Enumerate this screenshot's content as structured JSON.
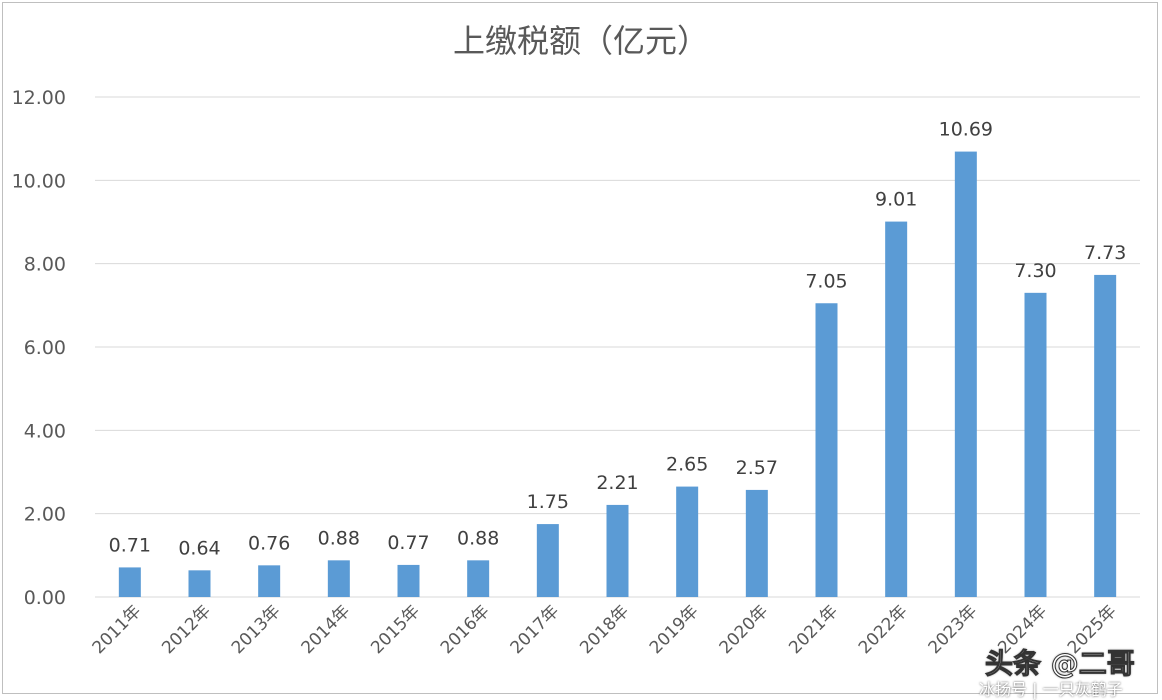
{
  "chart_data": {
    "type": "bar",
    "title": "上缴税额（亿元）",
    "categories": [
      "2011年",
      "2012年",
      "2013年",
      "2014年",
      "2015年",
      "2016年",
      "2017年",
      "2018年",
      "2019年",
      "2020年",
      "2021年",
      "2022年",
      "2023年",
      "2024年",
      "2025年"
    ],
    "values": [
      0.71,
      0.64,
      0.76,
      0.88,
      0.77,
      0.88,
      1.75,
      2.21,
      2.65,
      2.57,
      7.05,
      9.01,
      10.69,
      7.3,
      7.73
    ],
    "value_labels": [
      "0.71",
      "0.64",
      "0.76",
      "0.88",
      "0.77",
      "0.88",
      "1.75",
      "2.21",
      "2.65",
      "2.57",
      "7.05",
      "9.01",
      "10.69",
      "7.30",
      "7.73"
    ],
    "yticks": [
      "0.00",
      "2.00",
      "4.00",
      "6.00",
      "8.00",
      "10.00",
      "12.00"
    ],
    "ylim": [
      0,
      12
    ],
    "grid": true,
    "legend": "none",
    "bar_color": "#5b9bd5"
  },
  "watermark": {
    "main": "头条 @二哥",
    "sub": "冰扬号 | 一只灰鹤子"
  }
}
